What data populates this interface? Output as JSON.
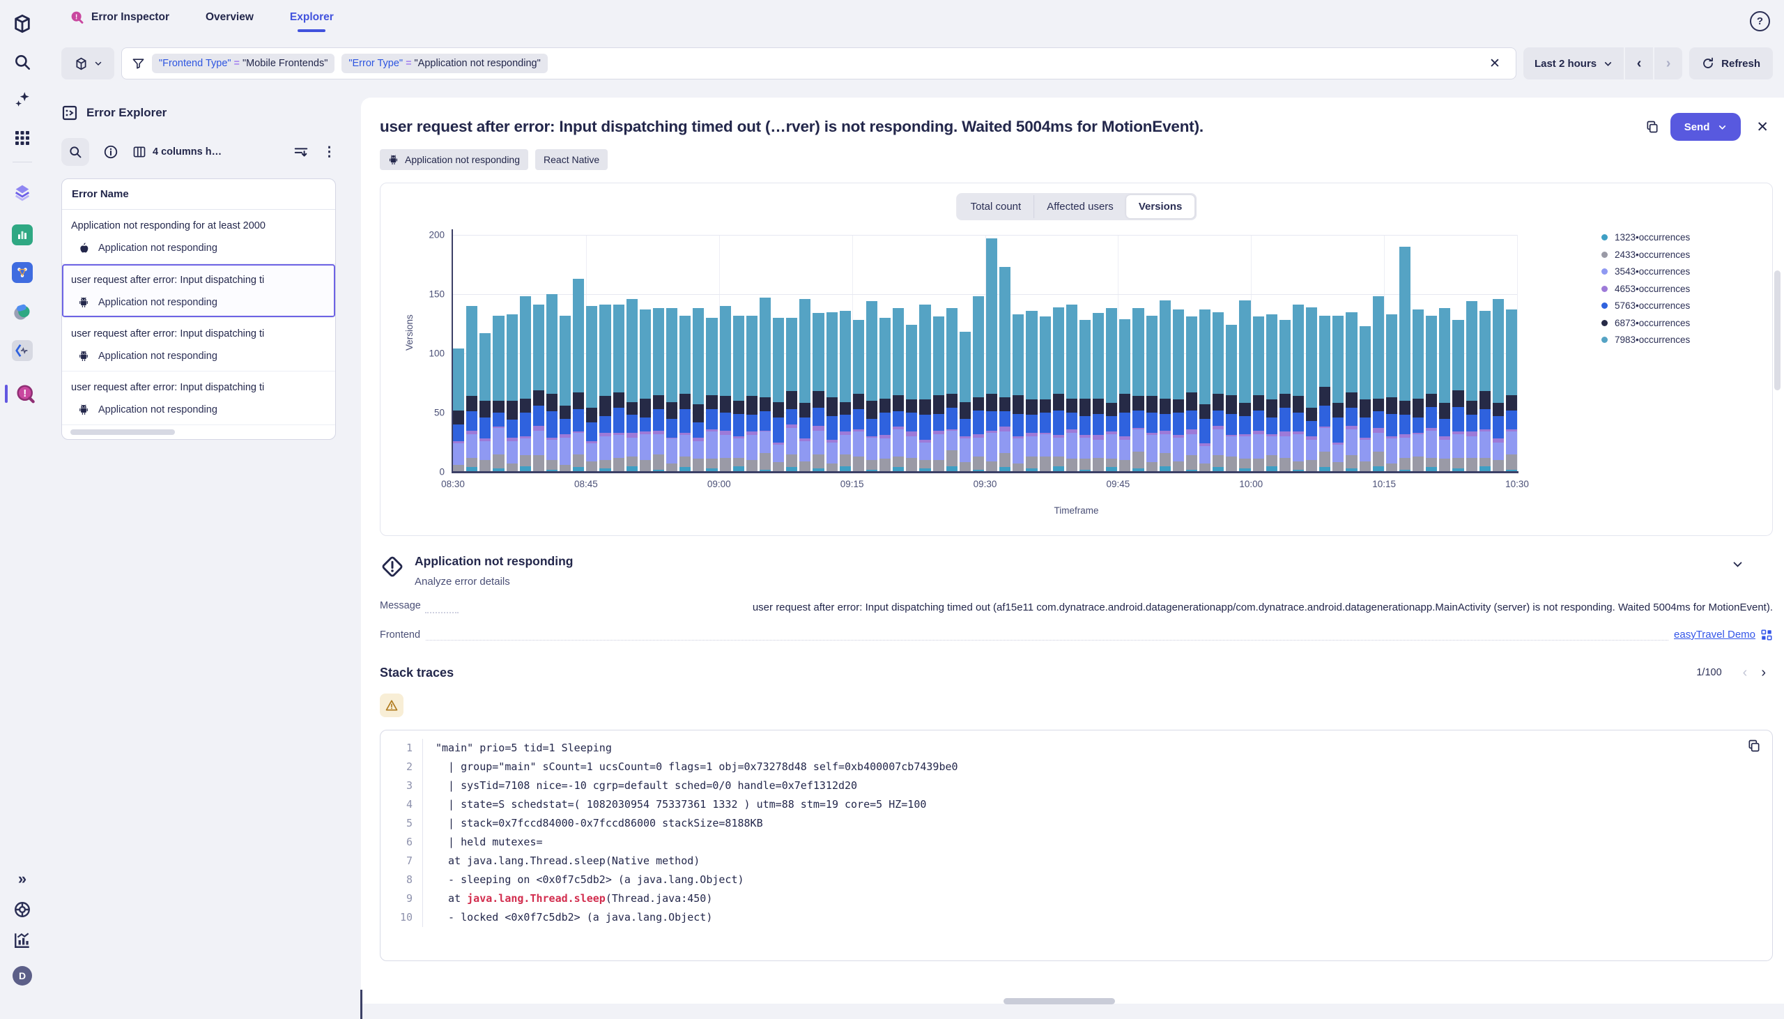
{
  "header": {
    "tabs": [
      {
        "label": "Error Inspector",
        "active": false
      },
      {
        "label": "Overview",
        "active": false
      },
      {
        "label": "Explorer",
        "active": true
      }
    ],
    "help_glyph": "?"
  },
  "icons": {
    "close": "✕",
    "clear": "✕",
    "kebab": "⋮",
    "expand": "»",
    "avatar": "D",
    "back": "‹",
    "forward": "›",
    "page_prev": "‹",
    "page_next": "›"
  },
  "filter_bar": {
    "chips": [
      {
        "key": "\"Frontend Type\"",
        "op": "=",
        "value": "\"Mobile Frontends\""
      },
      {
        "key": "\"Error Type\"",
        "op": "=",
        "value": "\"Application not responding\""
      }
    ],
    "time_range": "Last 2 hours",
    "refresh_label": "Refresh"
  },
  "explorer_panel": {
    "title": "Error Explorer",
    "columns_label": "4 columns h…",
    "table_header": "Error Name",
    "rows": [
      {
        "title": "Application not responding for at least 2000",
        "subtitle": "Application not responding",
        "os": "apple",
        "selected": false
      },
      {
        "title": "user request after error: Input dispatching ti",
        "subtitle": "Application not responding",
        "os": "android",
        "selected": true
      },
      {
        "title": "user request after error: Input dispatching ti",
        "subtitle": "Application not responding",
        "os": "android",
        "selected": false
      },
      {
        "title": "user request after error: Input dispatching ti",
        "subtitle": "Application not responding",
        "os": "android",
        "selected": false
      }
    ]
  },
  "detail": {
    "title": "user request after error: Input dispatching timed out (…rver) is not responding. Waited 5004ms for MotionEvent).",
    "send_label": "Send",
    "tags": [
      {
        "label": "Application not responding",
        "icon": "android"
      },
      {
        "label": "React Native",
        "icon": ""
      }
    ],
    "section": {
      "heading": "Application not responding",
      "subheading": "Analyze error details",
      "message_label": "Message",
      "message_value": "user request after error: Input dispatching timed out (af15e11 com.dynatrace.android.datagenerationapp/com.dynatrace.android.datagenerationapp.MainActivity (server) is not responding. Waited 5004ms for MotionEvent).",
      "frontend_label": "Frontend",
      "frontend_link": "easyTravel Demo"
    },
    "stack": {
      "heading": "Stack traces",
      "page": "1/100"
    },
    "code_lines": [
      {
        "n": "1",
        "pre": "\"main\" prio=5 tid=1 Sleeping",
        "hl": "",
        "post": ""
      },
      {
        "n": "2",
        "pre": "  | group=\"main\" sCount=1 ucsCount=0 flags=1 obj=0x73278d48 self=0xb400007cb7439be0",
        "hl": "",
        "post": ""
      },
      {
        "n": "3",
        "pre": "  | sysTid=7108 nice=-10 cgrp=default sched=0/0 handle=0x7ef1312d20",
        "hl": "",
        "post": ""
      },
      {
        "n": "4",
        "pre": "  | state=S schedstat=( 1082030954 75337361 1332 ) utm=88 stm=19 core=5 HZ=100",
        "hl": "",
        "post": ""
      },
      {
        "n": "5",
        "pre": "  | stack=0x7fccd84000-0x7fccd86000 stackSize=8188KB",
        "hl": "",
        "post": ""
      },
      {
        "n": "6",
        "pre": "  | held mutexes=",
        "hl": "",
        "post": ""
      },
      {
        "n": "7",
        "pre": "  at java.lang.Thread.sleep(Native method)",
        "hl": "",
        "post": ""
      },
      {
        "n": "8",
        "pre": "  - sleeping on <0x0f7c5db2> (a java.lang.Object)",
        "hl": "",
        "post": ""
      },
      {
        "n": "9",
        "pre": "  at ",
        "hl": "java.lang.Thread.sleep",
        "post": "(Thread.java:450)"
      },
      {
        "n": "10",
        "pre": "  - locked <0x0f7c5db2> (a java.lang.Object)",
        "hl": "",
        "post": ""
      }
    ]
  },
  "chart_data": {
    "type": "bar",
    "stacked": true,
    "tabs": [
      "Total count",
      "Affected users",
      "Versions"
    ],
    "active_tab": "Versions",
    "ylabel": "Versions",
    "xlabel": "Timeframe",
    "ylim": [
      0,
      200
    ],
    "y_ticks": [
      0,
      50,
      100,
      150,
      200
    ],
    "x_ticks": [
      "08:30",
      "08:45",
      "09:00",
      "09:15",
      "09:30",
      "09:45",
      "10:00",
      "10:15",
      "10:30"
    ],
    "legend": [
      {
        "label": "1323•occurrences",
        "color": "#3f9fc4"
      },
      {
        "label": "2433•occurrences",
        "color": "#9a9aa6"
      },
      {
        "label": "3543•occurrences",
        "color": "#8f99f2"
      },
      {
        "label": "4653•occurrences",
        "color": "#9d7ad8"
      },
      {
        "label": "5763•occurrences",
        "color": "#2f62de"
      },
      {
        "label": "6873•occurrences",
        "color": "#262a46"
      },
      {
        "label": "7983•occurrences",
        "color": "#55a3c4"
      }
    ],
    "series_order_bottom_to_top": [
      "1323•occurrences",
      "2433•occurrences",
      "3543•occurrences",
      "4653•occurrences",
      "5763•occurrences",
      "6873•occurrences",
      "7983•occurrences"
    ],
    "bars": [
      [
        0,
        6,
        18,
        2,
        14,
        12,
        52
      ],
      [
        4,
        8,
        20,
        3,
        16,
        13,
        76
      ],
      [
        0,
        10,
        16,
        2,
        18,
        14,
        57
      ],
      [
        3,
        12,
        22,
        1,
        12,
        10,
        72
      ],
      [
        0,
        7,
        19,
        3,
        15,
        16,
        73
      ],
      [
        5,
        9,
        14,
        2,
        20,
        12,
        86
      ],
      [
        0,
        14,
        21,
        4,
        17,
        13,
        72
      ],
      [
        2,
        8,
        17,
        2,
        22,
        15,
        84
      ],
      [
        0,
        6,
        23,
        3,
        13,
        11,
        76
      ],
      [
        4,
        11,
        18,
        1,
        19,
        14,
        96
      ],
      [
        0,
        9,
        15,
        2,
        16,
        12,
        86
      ],
      [
        3,
        7,
        20,
        3,
        14,
        17,
        77
      ],
      [
        0,
        12,
        19,
        2,
        21,
        13,
        74
      ],
      [
        5,
        8,
        16,
        4,
        15,
        11,
        87
      ],
      [
        0,
        10,
        22,
        2,
        12,
        16,
        75
      ],
      [
        2,
        13,
        17,
        3,
        18,
        12,
        73
      ],
      [
        0,
        7,
        21,
        1,
        16,
        14,
        79
      ],
      [
        4,
        9,
        18,
        2,
        20,
        13,
        66
      ],
      [
        0,
        11,
        15,
        3,
        13,
        15,
        81
      ],
      [
        3,
        8,
        23,
        2,
        17,
        12,
        65
      ],
      [
        0,
        12,
        19,
        4,
        15,
        14,
        76
      ],
      [
        5,
        7,
        16,
        2,
        19,
        11,
        72
      ],
      [
        0,
        10,
        21,
        3,
        14,
        16,
        68
      ],
      [
        2,
        14,
        18,
        1,
        16,
        12,
        84
      ],
      [
        0,
        8,
        15,
        2,
        21,
        13,
        71
      ],
      [
        4,
        11,
        22,
        3,
        13,
        15,
        62
      ],
      [
        0,
        9,
        17,
        2,
        18,
        12,
        88
      ],
      [
        3,
        12,
        20,
        4,
        15,
        14,
        66
      ],
      [
        0,
        7,
        18,
        2,
        20,
        16,
        72
      ],
      [
        5,
        10,
        16,
        3,
        14,
        11,
        77
      ],
      [
        0,
        13,
        21,
        2,
        17,
        13,
        62
      ],
      [
        2,
        8,
        19,
        1,
        15,
        15,
        84
      ],
      [
        0,
        11,
        17,
        3,
        19,
        12,
        68
      ],
      [
        4,
        9,
        23,
        2,
        13,
        14,
        73
      ],
      [
        0,
        12,
        18,
        4,
        16,
        11,
        63
      ],
      [
        3,
        7,
        15,
        2,
        21,
        13,
        80
      ],
      [
        0,
        10,
        22,
        3,
        14,
        16,
        66
      ],
      [
        5,
        13,
        17,
        1,
        18,
        12,
        72
      ],
      [
        0,
        8,
        20,
        2,
        15,
        14,
        59
      ],
      [
        2,
        11,
        16,
        3,
        20,
        11,
        85
      ],
      [
        0,
        9,
        24,
        2,
        16,
        15,
        131
      ],
      [
        4,
        12,
        18,
        4,
        13,
        12,
        110
      ],
      [
        0,
        7,
        21,
        2,
        19,
        16,
        68
      ],
      [
        3,
        10,
        17,
        3,
        15,
        13,
        75
      ],
      [
        0,
        13,
        19,
        1,
        17,
        11,
        70
      ],
      [
        5,
        8,
        16,
        2,
        21,
        14,
        73
      ],
      [
        0,
        11,
        22,
        3,
        14,
        12,
        79
      ],
      [
        2,
        9,
        18,
        2,
        16,
        15,
        66
      ],
      [
        0,
        12,
        15,
        4,
        18,
        13,
        72
      ],
      [
        4,
        7,
        21,
        2,
        13,
        11,
        80
      ],
      [
        0,
        10,
        17,
        3,
        20,
        16,
        63
      ],
      [
        3,
        14,
        19,
        1,
        15,
        12,
        74
      ],
      [
        0,
        8,
        23,
        2,
        17,
        14,
        68
      ],
      [
        5,
        11,
        16,
        3,
        14,
        13,
        83
      ],
      [
        0,
        9,
        20,
        2,
        19,
        11,
        76
      ],
      [
        2,
        12,
        18,
        4,
        16,
        15,
        64
      ],
      [
        0,
        7,
        15,
        2,
        21,
        12,
        80
      ],
      [
        4,
        10,
        22,
        3,
        13,
        14,
        69
      ],
      [
        0,
        13,
        17,
        1,
        18,
        16,
        59
      ],
      [
        3,
        8,
        19,
        2,
        15,
        11,
        87
      ],
      [
        0,
        11,
        21,
        3,
        17,
        13,
        66
      ],
      [
        5,
        9,
        16,
        2,
        14,
        15,
        72
      ],
      [
        0,
        12,
        18,
        4,
        20,
        12,
        62
      ],
      [
        2,
        7,
        23,
        2,
        16,
        14,
        77
      ],
      [
        0,
        10,
        17,
        3,
        13,
        11,
        85
      ],
      [
        4,
        13,
        20,
        1,
        18,
        16,
        60
      ],
      [
        0,
        8,
        15,
        2,
        21,
        12,
        74
      ],
      [
        3,
        11,
        22,
        3,
        15,
        13,
        68
      ],
      [
        0,
        9,
        18,
        2,
        17,
        15,
        62
      ],
      [
        5,
        12,
        16,
        4,
        14,
        11,
        86
      ],
      [
        0,
        7,
        21,
        2,
        19,
        14,
        70
      ],
      [
        2,
        10,
        17,
        3,
        16,
        12,
        130
      ],
      [
        0,
        13,
        19,
        1,
        13,
        16,
        75
      ],
      [
        4,
        8,
        23,
        2,
        18,
        11,
        66
      ],
      [
        0,
        11,
        16,
        3,
        15,
        13,
        80
      ],
      [
        3,
        9,
        20,
        2,
        21,
        14,
        59
      ],
      [
        0,
        12,
        18,
        4,
        14,
        12,
        84
      ],
      [
        5,
        7,
        22,
        2,
        17,
        15,
        68
      ],
      [
        0,
        10,
        15,
        3,
        19,
        11,
        88
      ],
      [
        2,
        13,
        19,
        2,
        16,
        13,
        72
      ]
    ]
  }
}
